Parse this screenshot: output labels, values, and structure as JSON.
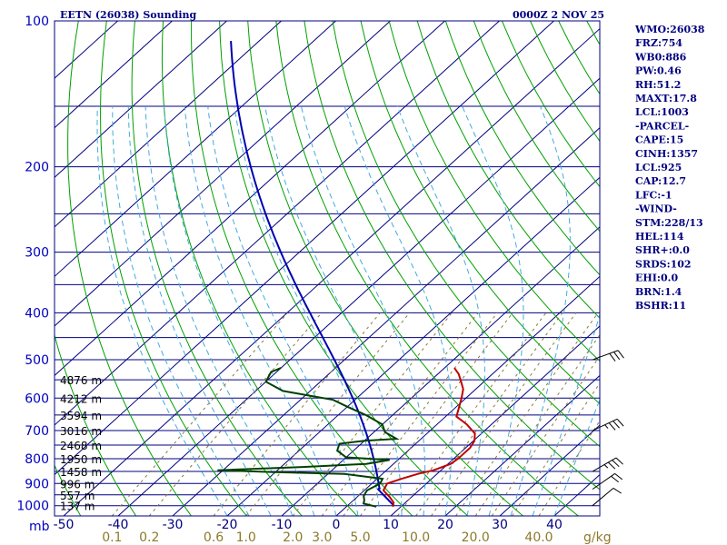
{
  "header": {
    "station_title": "EETN (26038) Sounding",
    "time_label": "0000Z  2 NOV 25"
  },
  "side_panel": [
    "WMO:26038",
    "FRZ:754",
    "WB0:886",
    "PW:0.46",
    "RH:51.2",
    "MAXT:17.8",
    "LCL:1003",
    "-PARCEL-",
    "CAPE:15",
    "CINH:1357",
    "LCL:925",
    "CAP:12.7",
    "LFC:-1",
    "-WIND-",
    "STM:228/13",
    "HEL:114",
    "SHR+:0.0",
    "SRDS:102",
    "EHI:0.0",
    "BRN:1.4",
    "BSHR:11"
  ],
  "colors": {
    "frame": "#000080",
    "isobar": "#000080",
    "isotherm": "#000080",
    "dry_adiabat": "#00a000",
    "moist_adiabat": "#44aadd",
    "mixing_ratio": "#8c7a3a",
    "temperature": "#c00000",
    "dewpoint": "#004000",
    "parcel": "#0000b0",
    "wind_barb": "#000000"
  },
  "chart_data": {
    "type": "skew-t",
    "title": "EETN (26038) Sounding",
    "pressure_unit": "mb",
    "temperature_unit": "°C",
    "mixing_ratio_unit": "g/kg",
    "pressure_ticks": [
      100,
      200,
      300,
      400,
      500,
      600,
      700,
      800,
      900,
      1000
    ],
    "isobars": [
      100,
      150,
      200,
      250,
      300,
      350,
      400,
      450,
      500,
      550,
      600,
      650,
      700,
      750,
      800,
      850,
      900,
      950,
      1000
    ],
    "temperature_ticks": [
      -50,
      -40,
      -30,
      -20,
      -10,
      0,
      10,
      20,
      30,
      40
    ],
    "isotherm_range": [
      -140,
      50
    ],
    "isotherm_step": 10,
    "mixing_ratio_labels": [
      "0.1",
      "0.2",
      "0.6",
      "1.0",
      "2.0",
      "3.0",
      "5.0",
      "10.0",
      "20.0",
      "40.0"
    ],
    "mixing_ratio_values": [
      0.1,
      0.2,
      0.6,
      1.0,
      2.0,
      3.0,
      5.0,
      10.0,
      20.0,
      40.0
    ],
    "height_labels": [
      {
        "text": "4876 m",
        "p": 550
      },
      {
        "text": "4212 m",
        "p": 600
      },
      {
        "text": "3594 m",
        "p": 650
      },
      {
        "text": "3016 m",
        "p": 700
      },
      {
        "text": "2468 m",
        "p": 750
      },
      {
        "text": "1950 m",
        "p": 800
      },
      {
        "text": "1458 m",
        "p": 850
      },
      {
        "text": "996 m",
        "p": 900
      },
      {
        "text": "557 m",
        "p": 950
      },
      {
        "text": "137 m",
        "p": 1000
      }
    ],
    "temperature_profile": [
      [
        1005,
        8.5
      ],
      [
        985,
        7.8
      ],
      [
        960,
        6.0
      ],
      [
        930,
        3.5
      ],
      [
        900,
        2.8
      ],
      [
        880,
        4.5
      ],
      [
        860,
        6.5
      ],
      [
        845,
        8.6
      ],
      [
        820,
        10.5
      ],
      [
        800,
        10.8
      ],
      [
        760,
        10.8
      ],
      [
        735,
        10.2
      ],
      [
        710,
        8.8
      ],
      [
        680,
        5.5
      ],
      [
        655,
        2.0
      ],
      [
        625,
        0.5
      ],
      [
        600,
        -0.8
      ],
      [
        575,
        -2.3
      ],
      [
        555,
        -4.2
      ],
      [
        535,
        -6.2
      ],
      [
        520,
        -8.2
      ]
    ],
    "dewpoint_profile": [
      [
        1005,
        5.5
      ],
      [
        990,
        2.5
      ],
      [
        975,
        2.0
      ],
      [
        955,
        1.0
      ],
      [
        930,
        0.5
      ],
      [
        900,
        1.5
      ],
      [
        880,
        1.0
      ],
      [
        860,
        -7.0
      ],
      [
        852,
        -21.0
      ],
      [
        845,
        -31.0
      ],
      [
        832,
        -16.0
      ],
      [
        820,
        -5.0
      ],
      [
        805,
        -1.5
      ],
      [
        795,
        -10.0
      ],
      [
        770,
        -13.0
      ],
      [
        745,
        -14.0
      ],
      [
        735,
        -10.0
      ],
      [
        728,
        -4.5
      ],
      [
        705,
        -8.0
      ],
      [
        680,
        -10.0
      ],
      [
        650,
        -15.0
      ],
      [
        625,
        -20.0
      ],
      [
        605,
        -24.0
      ],
      [
        580,
        -35.0
      ],
      [
        555,
        -40.0
      ],
      [
        530,
        -41.0
      ],
      [
        520,
        -40.0
      ]
    ],
    "parcel_surface_temp_c": 8.5,
    "parcel_top_mb": 110,
    "wind_barbs": [
      {
        "p": 1000,
        "dir": 230,
        "spd": 10
      },
      {
        "p": 925,
        "dir": 235,
        "spd": 20
      },
      {
        "p": 850,
        "dir": 240,
        "spd": 25
      },
      {
        "p": 700,
        "dir": 245,
        "spd": 25
      },
      {
        "p": 500,
        "dir": 250,
        "spd": 30
      }
    ]
  }
}
